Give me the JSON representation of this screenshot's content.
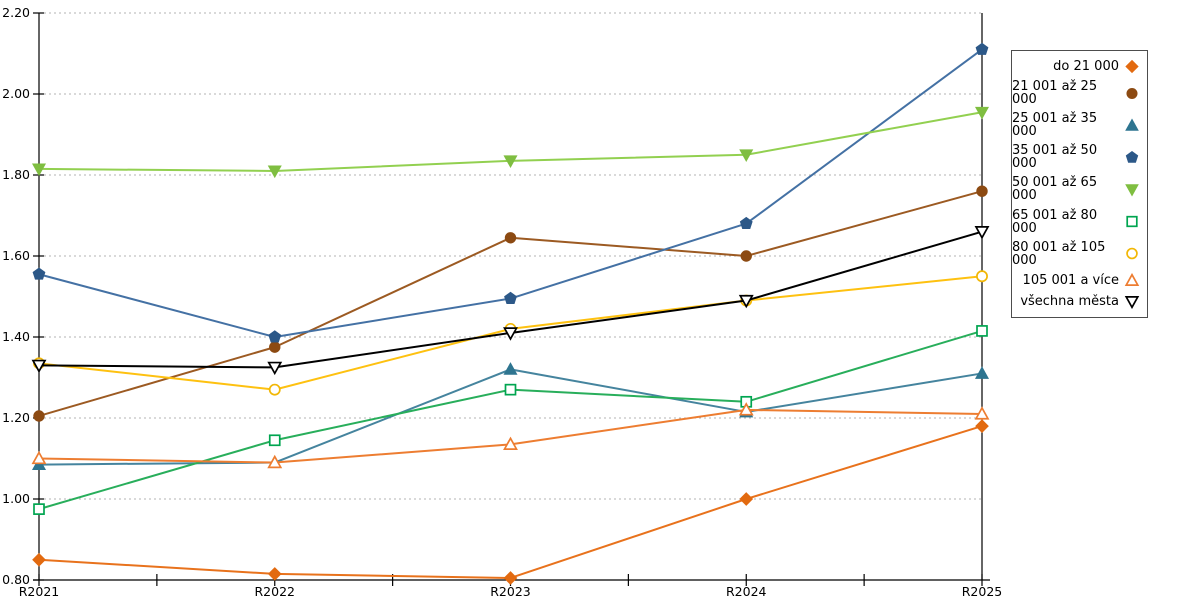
{
  "chart_data": {
    "type": "line",
    "x": [
      "R2021",
      "R2022",
      "R2023",
      "R2024",
      "R2025"
    ],
    "ylim": [
      0.8,
      2.2
    ],
    "ytick_step": 0.2,
    "y_tick_labels": [
      "0.80",
      "1.00",
      "1.20",
      "1.40",
      "1.60",
      "1.80",
      "2.00",
      "2.20"
    ],
    "grid": "horizontal-dashed",
    "legend_position": "right",
    "series": [
      {
        "name": "do 21 000",
        "marker": "diamond",
        "open": false,
        "color": "#E8721C",
        "marker_color": "#E26A10",
        "values": [
          0.85,
          0.815,
          0.805,
          1.0,
          1.18
        ]
      },
      {
        "name": "21 001 až 25 000",
        "marker": "circle",
        "open": false,
        "color": "#9C5A22",
        "marker_color": "#8C4A12",
        "values": [
          1.205,
          1.375,
          1.645,
          1.6,
          1.76
        ]
      },
      {
        "name": "25 001 až 35 000",
        "marker": "triangle-up",
        "open": false,
        "color": "#45849E",
        "marker_color": "#2E7590",
        "values": [
          1.085,
          1.09,
          1.32,
          1.215,
          1.31
        ]
      },
      {
        "name": "35 001 až 50 000",
        "marker": "pentagon",
        "open": false,
        "color": "#4471A4",
        "marker_color": "#2C5888",
        "values": [
          1.555,
          1.4,
          1.495,
          1.68,
          2.11
        ]
      },
      {
        "name": "50 001 až 65 000",
        "marker": "triangle-down",
        "open": false,
        "color": "#92D050",
        "marker_color": "#7FBE41",
        "values": [
          1.815,
          1.81,
          1.835,
          1.85,
          1.955
        ]
      },
      {
        "name": "65 001 až 80 000",
        "marker": "square",
        "open": true,
        "color": "#28AE5B",
        "marker_color": "#00A550",
        "values": [
          0.975,
          1.145,
          1.27,
          1.24,
          1.415
        ]
      },
      {
        "name": "80 001 až 105 000",
        "marker": "circle",
        "open": true,
        "color": "#FEC110",
        "marker_color": "#F2B705",
        "values": [
          1.335,
          1.27,
          1.42,
          1.49,
          1.55
        ]
      },
      {
        "name": "105 001 a více",
        "marker": "triangle-up",
        "open": true,
        "color": "#ED7D31",
        "marker_color": "#ED7D31",
        "values": [
          1.1,
          1.09,
          1.135,
          1.22,
          1.21
        ]
      },
      {
        "name": "všechna města",
        "marker": "triangle-down",
        "open": true,
        "color": "#000000",
        "marker_color": "#000000",
        "values": [
          1.33,
          1.325,
          1.41,
          1.49,
          1.66
        ]
      }
    ],
    "axis_color": "#000000",
    "grid_color": "#b3b3b3"
  },
  "layout_note_colors": {
    "background": "#ffffff",
    "legend_border": "#4d4d4d"
  }
}
